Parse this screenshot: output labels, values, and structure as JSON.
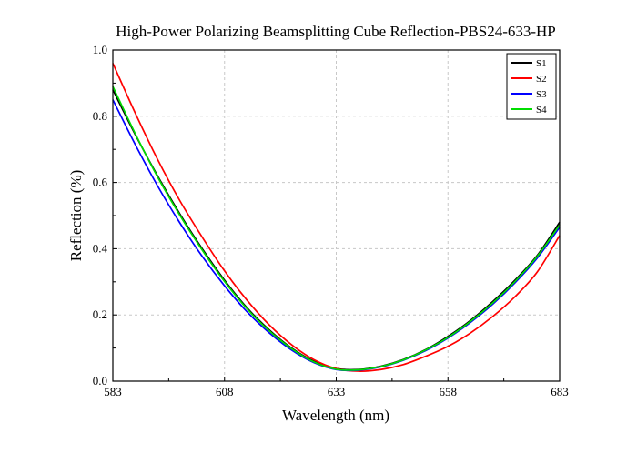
{
  "chart_data": {
    "type": "line",
    "title": "High-Power Polarizing Beamsplitting Cube Reflection-PBS24-633-HP",
    "xlabel": "Wavelength (nm)",
    "ylabel": "Reflection (%)",
    "xlim": [
      583,
      683
    ],
    "ylim": [
      0.0,
      1.0
    ],
    "x_ticks": [
      "583",
      "608",
      "633",
      "658",
      "683"
    ],
    "y_ticks": [
      "0.0",
      "0.2",
      "0.4",
      "0.6",
      "0.8",
      "1.0"
    ],
    "grid": true,
    "legend_position": "top-right",
    "x": [
      583,
      588,
      593,
      598,
      603,
      608,
      613,
      618,
      623,
      628,
      633,
      638,
      643,
      648,
      653,
      658,
      663,
      668,
      673,
      678,
      683
    ],
    "series": [
      {
        "name": "S1",
        "color": "#000000",
        "values": [
          0.88,
          0.745,
          0.62,
          0.505,
          0.4,
          0.305,
          0.222,
          0.155,
          0.1,
          0.06,
          0.038,
          0.035,
          0.045,
          0.065,
          0.095,
          0.135,
          0.183,
          0.24,
          0.305,
          0.38,
          0.48
        ]
      },
      {
        "name": "S2",
        "color": "#ff0000",
        "values": [
          0.96,
          0.81,
          0.67,
          0.545,
          0.435,
          0.333,
          0.245,
          0.17,
          0.11,
          0.065,
          0.038,
          0.03,
          0.035,
          0.05,
          0.075,
          0.105,
          0.145,
          0.195,
          0.255,
          0.33,
          0.44
        ]
      },
      {
        "name": "S3",
        "color": "#0000ff",
        "values": [
          0.85,
          0.715,
          0.59,
          0.478,
          0.377,
          0.288,
          0.21,
          0.146,
          0.094,
          0.056,
          0.035,
          0.033,
          0.043,
          0.063,
          0.092,
          0.13,
          0.177,
          0.232,
          0.297,
          0.372,
          0.465
        ]
      },
      {
        "name": "S4",
        "color": "#00dd00",
        "values": [
          0.89,
          0.748,
          0.617,
          0.501,
          0.396,
          0.301,
          0.219,
          0.152,
          0.098,
          0.058,
          0.036,
          0.034,
          0.044,
          0.064,
          0.094,
          0.132,
          0.18,
          0.236,
          0.301,
          0.377,
          0.472
        ]
      }
    ]
  }
}
